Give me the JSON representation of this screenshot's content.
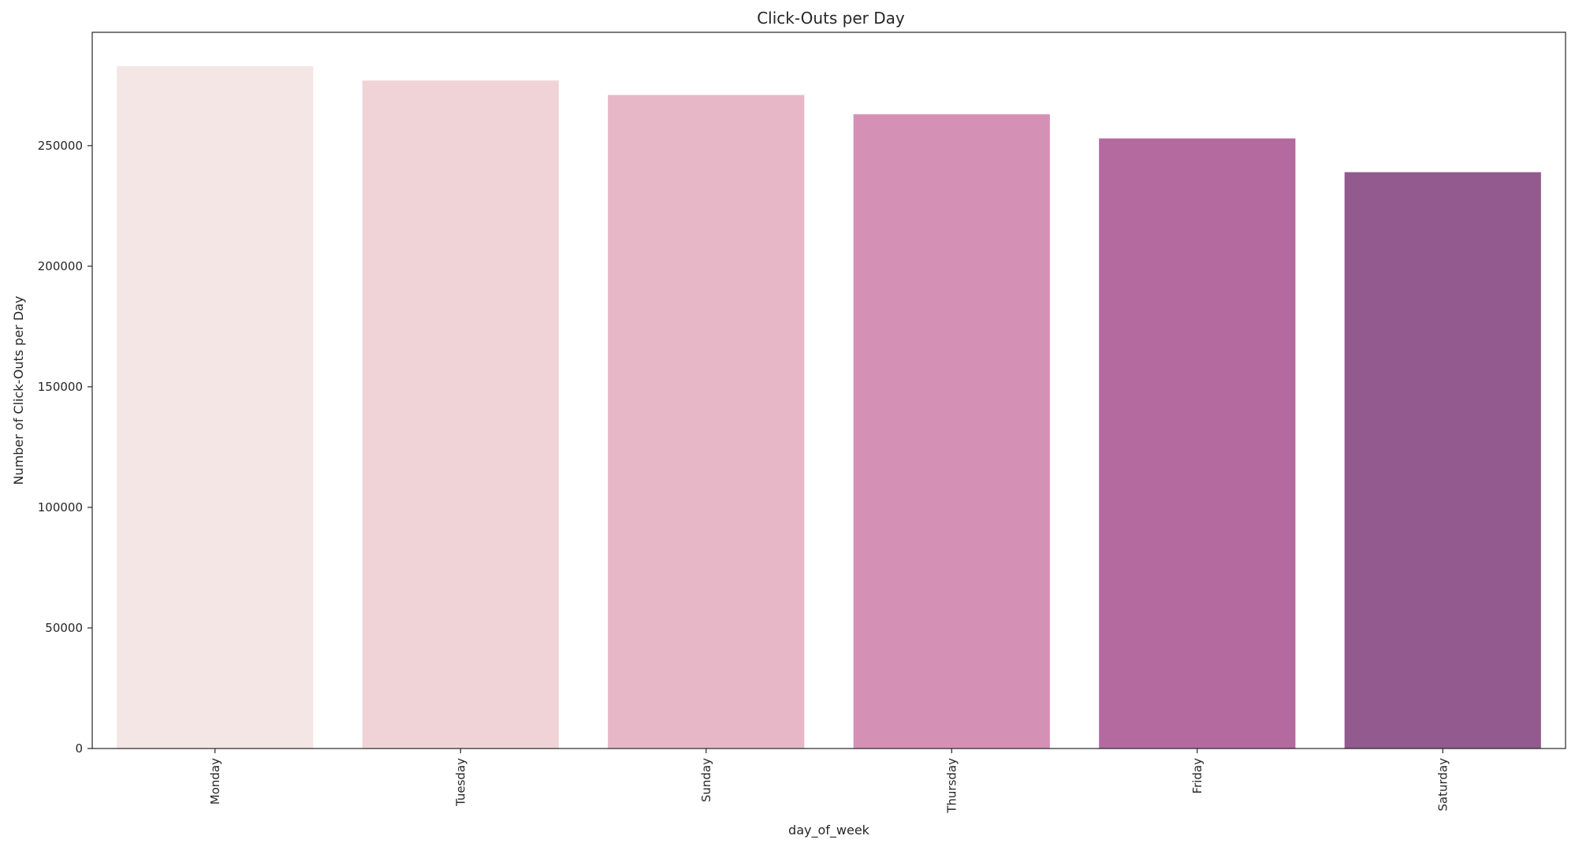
{
  "chart_data": {
    "type": "bar",
    "title": "Click-Outs per Day",
    "xlabel": "day_of_week",
    "ylabel": "Number of Click-Outs per Day",
    "categories": [
      "Monday",
      "Tuesday",
      "Sunday",
      "Thursday",
      "Friday",
      "Saturday"
    ],
    "values": [
      283000,
      277000,
      271000,
      263000,
      253000,
      239000
    ],
    "ylim": [
      0,
      297000
    ],
    "yticks": [
      "0",
      "50000",
      "100000",
      "150000",
      "200000",
      "250000"
    ],
    "ytick_values": [
      0,
      50000,
      100000,
      150000,
      200000,
      250000
    ],
    "colors": [
      "#f5e6e6",
      "#f0d3d7",
      "#e7b7c7",
      "#d590b6",
      "#b46a9f",
      "#925a8e"
    ],
    "grid": false,
    "legend": "none"
  }
}
